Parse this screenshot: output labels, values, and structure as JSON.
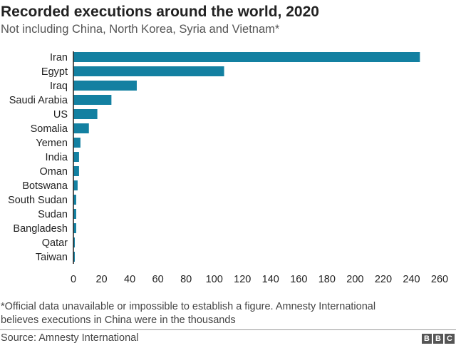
{
  "title": "Recorded executions around the world, 2020",
  "subtitle": "Not including China, North Korea, Syria and Vietnam*",
  "footnote_line1": "*Official data unavailable or impossible to establish a figure. Amnesty International",
  "footnote_line2": "believes executions in China were in the thousands",
  "source": "Source: Amnesty International",
  "logo": [
    "B",
    "B",
    "C"
  ],
  "chart_data": {
    "type": "bar",
    "orientation": "horizontal",
    "categories": [
      "Iran",
      "Egypt",
      "Iraq",
      "Saudi Arabia",
      "US",
      "Somalia",
      "Yemen",
      "India",
      "Oman",
      "Botswana",
      "South Sudan",
      "Sudan",
      "Bangladesh",
      "Qatar",
      "Taiwan"
    ],
    "values": [
      246,
      107,
      45,
      27,
      17,
      11,
      5,
      4,
      4,
      3,
      2,
      2,
      2,
      1,
      1
    ],
    "xlim": [
      0,
      260
    ],
    "xticks": [
      0,
      20,
      40,
      60,
      80,
      100,
      120,
      140,
      160,
      180,
      200,
      220,
      240,
      260
    ],
    "bar_color": "#1380a1",
    "grid": false
  }
}
